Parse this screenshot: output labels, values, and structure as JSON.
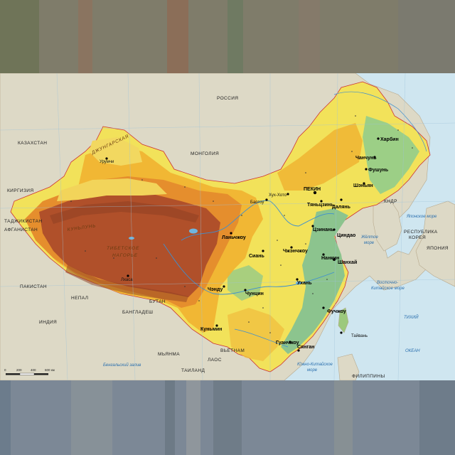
{
  "map": {
    "countries": {
      "russia": "РОССИЯ",
      "kazakhstan": "КАЗАХСТАН",
      "mongolia": "МОНГОЛИЯ",
      "kirgizia": "КИРГИЗИЯ",
      "tajikistan": "ТАДЖИКИСТАН",
      "afghanistan": "АФГАНИСТАН",
      "pakistan": "ПАКИСТАН",
      "india": "ИНДИЯ",
      "nepal": "НЕПАЛ",
      "bhutan": "БУТАН",
      "bangladesh": "БАНГЛАДЕШ",
      "myanmar": "МЬЯНМА",
      "vietnam": "ВЬЕТНАМ",
      "laos": "ЛАОС",
      "thailand": "ТАИЛАНД",
      "philippines": "ФИЛИППИНЫ",
      "korea_dprk": "КНДР",
      "korea_republic_1": "РЕСПУБЛИКА",
      "korea_republic_2": "КОРЕЯ",
      "japan": "ЯПОНИЯ"
    },
    "seas": {
      "sea_of_japan": "Японское море",
      "yellow_sea_1": "Жёлтое",
      "yellow_sea_2": "море",
      "east_china_1": "Восточно-",
      "east_china_2": "Китайское море",
      "pacific_1": "ТИХИЙ",
      "pacific_2": "ОКЕАН",
      "south_china_1": "Южно-Китайское",
      "south_china_2": "море",
      "bengal": "Бенгальский залив"
    },
    "regions": {
      "dzungaria": "ДЖУНГАРСКАЯ",
      "tibet_1": "ТИБЕТСКОЕ",
      "tibet_2": "НАГОРЬЕ",
      "kunlun": "КУНЬЛУНЬ"
    },
    "cities": {
      "harbin": "Харбин",
      "changchun": "Чанчунь",
      "shenyang": "Шэньян",
      "beijing": "ПЕКИН",
      "tianjin": "Тяньцзинь",
      "dalian": "Далянь",
      "qingdao": "Циндао",
      "jinan": "Цзинань",
      "nanjing": "Нанкин",
      "shanghai": "Шанхай",
      "lanzhou": "Ланьчжоу",
      "xian": "Сиань",
      "zhengzhou": "Чжэнчжоу",
      "wuhan": "Ухань",
      "chongqing": "Чунцин",
      "chengdu": "Чэнду",
      "kunming": "Куньмин",
      "guangzhou": "Гуанчжоу",
      "xianggang": "Сянган",
      "fuzhou": "Фучжоу",
      "taiwan": "Тайвань",
      "fushun": "Фушунь",
      "hohhot": "Хух-Хото",
      "urumqi": "Урумчи",
      "lhasa": "Лхаса",
      "baotou": "Баотоу"
    },
    "scale": {
      "s0": "0",
      "s200": "200",
      "s400": "400",
      "s600": "600 км"
    }
  },
  "colors": {
    "sea": "#cfe6f0",
    "neighbor": "#ddd9c6",
    "lowland": "#7fbf8e",
    "plain": "#f2e25a",
    "hills": "#f0b433",
    "highland": "#e58e2d",
    "mountain": "#c7612a",
    "plateau": "#b0502a"
  }
}
